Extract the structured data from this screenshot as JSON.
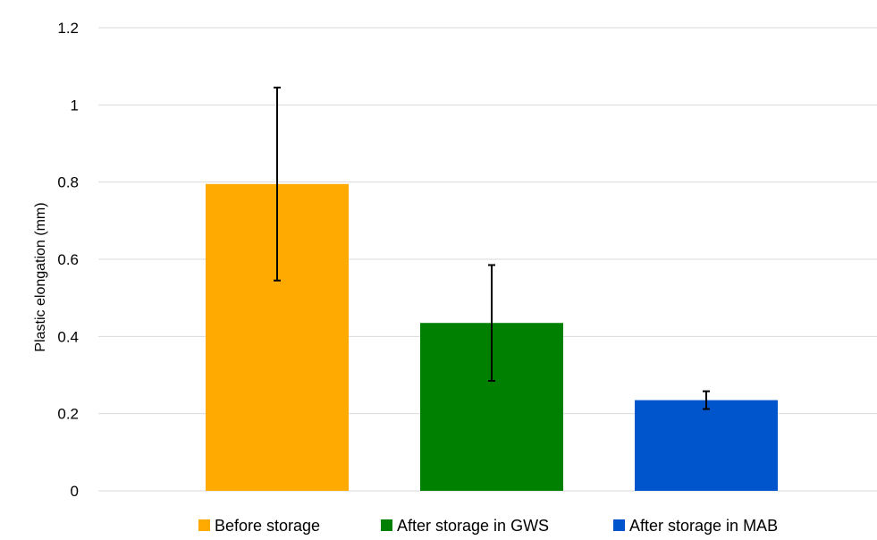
{
  "chart_data": {
    "type": "bar",
    "title": "",
    "xlabel": "",
    "ylabel": "Plastic elongation (mm)",
    "ylim": [
      0,
      1.2
    ],
    "yticks": [
      0,
      0.2,
      0.4,
      0.6,
      0.8,
      1,
      1.2
    ],
    "ytick_labels": [
      "0",
      "0.2",
      "0.4",
      "0.6",
      "0.8",
      "1",
      "1.2"
    ],
    "grid": true,
    "legend_position": "bottom",
    "series": [
      {
        "name": "Before storage",
        "value": 0.795,
        "error": 0.25,
        "color": "#FFAA00"
      },
      {
        "name": "After storage in GWS",
        "value": 0.435,
        "error": 0.15,
        "color": "#008000"
      },
      {
        "name": "After storage in MAB",
        "value": 0.235,
        "error": 0.023,
        "color": "#0055CC"
      }
    ]
  }
}
